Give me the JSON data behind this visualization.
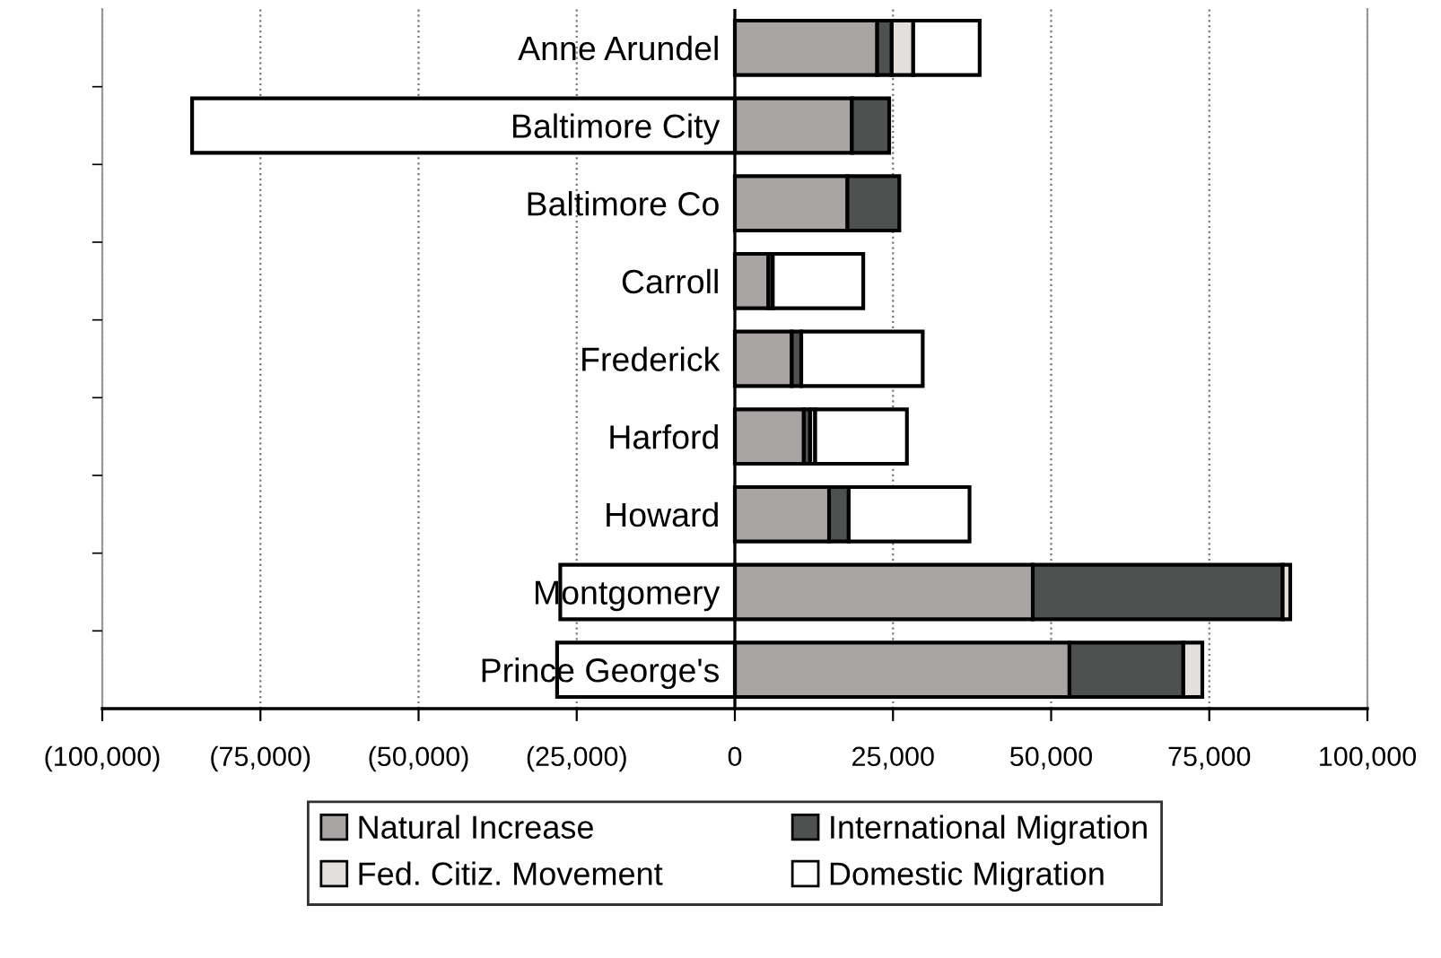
{
  "chart_data": {
    "type": "bar",
    "orientation": "horizontal",
    "stacked": true,
    "categories": [
      "Anne Arundel",
      "Baltimore City",
      "Baltimore Co",
      "Carroll",
      "Frederick",
      "Harford",
      "Howard",
      "Montgomery",
      "Prince George's"
    ],
    "series": [
      {
        "name": "Natural Increase",
        "color": "#a9a4a4",
        "values": [
          22500,
          18500,
          17800,
          5300,
          9000,
          10900,
          14900,
          47100,
          52900
        ]
      },
      {
        "name": "International Migration",
        "color": "#4f5150",
        "values": [
          2300,
          5900,
          8200,
          700,
          1500,
          1000,
          3100,
          39500,
          18000
        ]
      },
      {
        "name": "Fed. Citiz. Movement",
        "color": "#e3dfdd",
        "values": [
          3400,
          null,
          null,
          null,
          null,
          800,
          null,
          1200,
          3000
        ]
      },
      {
        "name": "Domestic Migration",
        "color": "#ffffff",
        "values": [
          10500,
          -85800,
          null,
          14300,
          19200,
          14500,
          19100,
          -27600,
          -28100
        ]
      }
    ],
    "xlim": [
      -100000,
      100000
    ],
    "xticks": [
      {
        "value": -100000,
        "label": "(100,000)"
      },
      {
        "value": -75000,
        "label": "(75,000)"
      },
      {
        "value": -50000,
        "label": "(50,000)"
      },
      {
        "value": -25000,
        "label": "(25,000)"
      },
      0,
      {
        "value": 25000,
        "label": "25,000"
      },
      {
        "value": 50000,
        "label": "50,000"
      },
      {
        "value": 75000,
        "label": "75,000"
      },
      {
        "value": 100000,
        "label": "100,000"
      }
    ],
    "grid": "x",
    "legend": "bottom"
  }
}
